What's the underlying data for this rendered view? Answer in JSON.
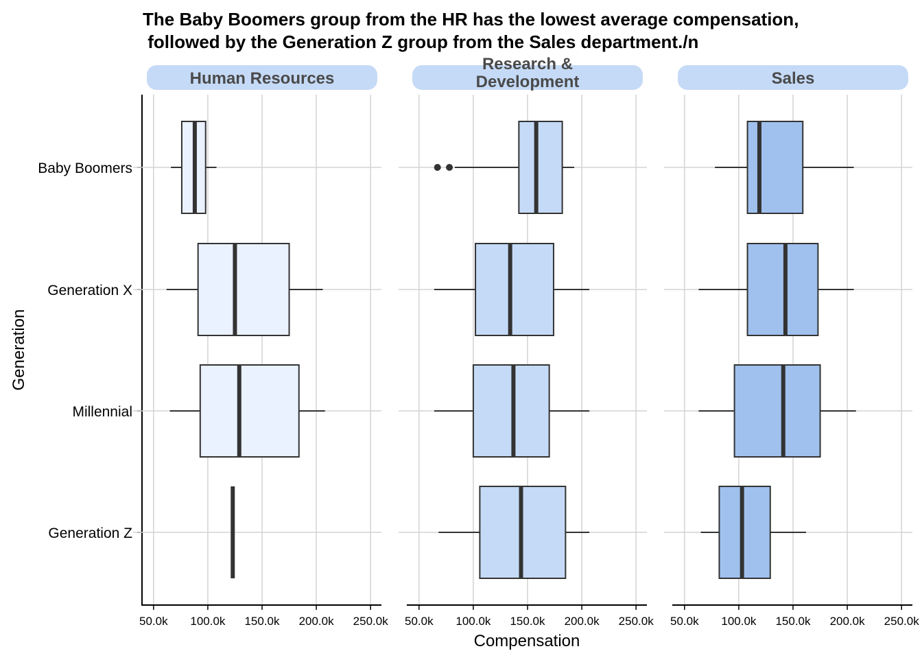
{
  "chart_data": {
    "type": "boxplot",
    "title_lines": [
      "The Baby Boomers group from the HR has the lowest average compensation,",
      " followed by the Generation Z group from the Sales department./n"
    ],
    "xlabel": "Compensation",
    "ylabel": "Generation",
    "xlim": [
      40000,
      260000
    ],
    "x_ticks": [
      50000,
      100000,
      150000,
      200000,
      250000
    ],
    "x_tick_labels": [
      "50.0k",
      "100.0k",
      "150.0k",
      "200.0k",
      "250.0k"
    ],
    "categories": [
      "Baby Boomers",
      "Generation X",
      "Millennial",
      "Generation Z"
    ],
    "grid": true,
    "facets": [
      {
        "label_lines": [
          "Human Resources"
        ],
        "fill": "#EAF1FF",
        "boxes": [
          {
            "category": "Baby Boomers",
            "whisker_low": 66000,
            "q1": 76000,
            "median": 88000,
            "q3": 98000,
            "whisker_high": 108000,
            "outliers": []
          },
          {
            "category": "Generation X",
            "whisker_low": 62000,
            "q1": 91000,
            "median": 125000,
            "q3": 175000,
            "whisker_high": 206000,
            "outliers": []
          },
          {
            "category": "Millennial",
            "whisker_low": 65000,
            "q1": 93000,
            "median": 129000,
            "q3": 184000,
            "whisker_high": 208000,
            "outliers": []
          },
          {
            "category": "Generation Z",
            "whisker_low": 123000,
            "q1": 123000,
            "median": 123000,
            "q3": 123000,
            "whisker_high": 123000,
            "outliers": []
          }
        ]
      },
      {
        "label_lines": [
          "Research &",
          "Development"
        ],
        "fill": "#C5DAF6",
        "boxes": [
          {
            "category": "Baby Boomers",
            "whisker_low": 83000,
            "q1": 142000,
            "median": 158000,
            "q3": 182000,
            "whisker_high": 193000,
            "outliers": [
              67000,
              78000
            ]
          },
          {
            "category": "Generation X",
            "whisker_low": 64000,
            "q1": 102000,
            "median": 134000,
            "q3": 174000,
            "whisker_high": 207000,
            "outliers": []
          },
          {
            "category": "Millennial",
            "whisker_low": 64000,
            "q1": 100000,
            "median": 137000,
            "q3": 170000,
            "whisker_high": 207000,
            "outliers": []
          },
          {
            "category": "Generation Z",
            "whisker_low": 68000,
            "q1": 106000,
            "median": 144000,
            "q3": 185000,
            "whisker_high": 207000,
            "outliers": []
          }
        ]
      },
      {
        "label_lines": [
          "Sales"
        ],
        "fill": "#A0C1EE",
        "boxes": [
          {
            "category": "Baby Boomers",
            "whisker_low": 78000,
            "q1": 108000,
            "median": 119000,
            "q3": 159000,
            "whisker_high": 206000,
            "outliers": []
          },
          {
            "category": "Generation X",
            "whisker_low": 63000,
            "q1": 108000,
            "median": 143000,
            "q3": 173000,
            "whisker_high": 206000,
            "outliers": []
          },
          {
            "category": "Millennial",
            "whisker_low": 63000,
            "q1": 96000,
            "median": 141000,
            "q3": 175000,
            "whisker_high": 208000,
            "outliers": []
          },
          {
            "category": "Generation Z",
            "whisker_low": 65000,
            "q1": 82000,
            "median": 103000,
            "q3": 129000,
            "whisker_high": 162000,
            "outliers": []
          }
        ]
      }
    ],
    "colors": {
      "strip_fill": "#C5DAF6",
      "strip_text": "#4A4A4A",
      "grid": "#D3D3D3",
      "box_stroke": "#333333"
    }
  }
}
